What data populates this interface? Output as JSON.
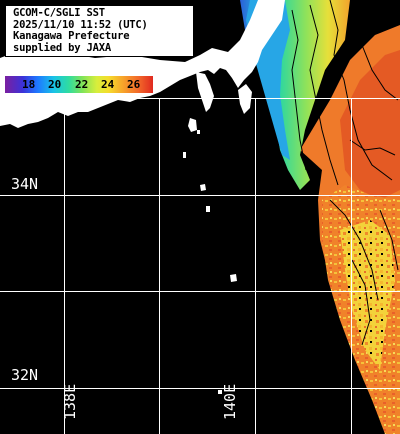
{
  "title": {
    "lines": [
      "GCOM-C/SGLI SST",
      "2025/11/10 11:52 (UTC)",
      "Kanagawa Prefecture",
      "supplied by JAXA"
    ]
  },
  "colorbar": {
    "ticks": [
      "18",
      "20",
      "22",
      "24",
      "26"
    ]
  },
  "grid": {
    "lat_labels": [
      "34N",
      "32N"
    ],
    "lon_labels": [
      "138E",
      "140E"
    ]
  },
  "colors": {
    "land": "#ffffff",
    "no_data": "#000000",
    "grid": "#ffffff",
    "sst_warm": "#f26a2a",
    "sst_cool": "#2fdca0"
  }
}
